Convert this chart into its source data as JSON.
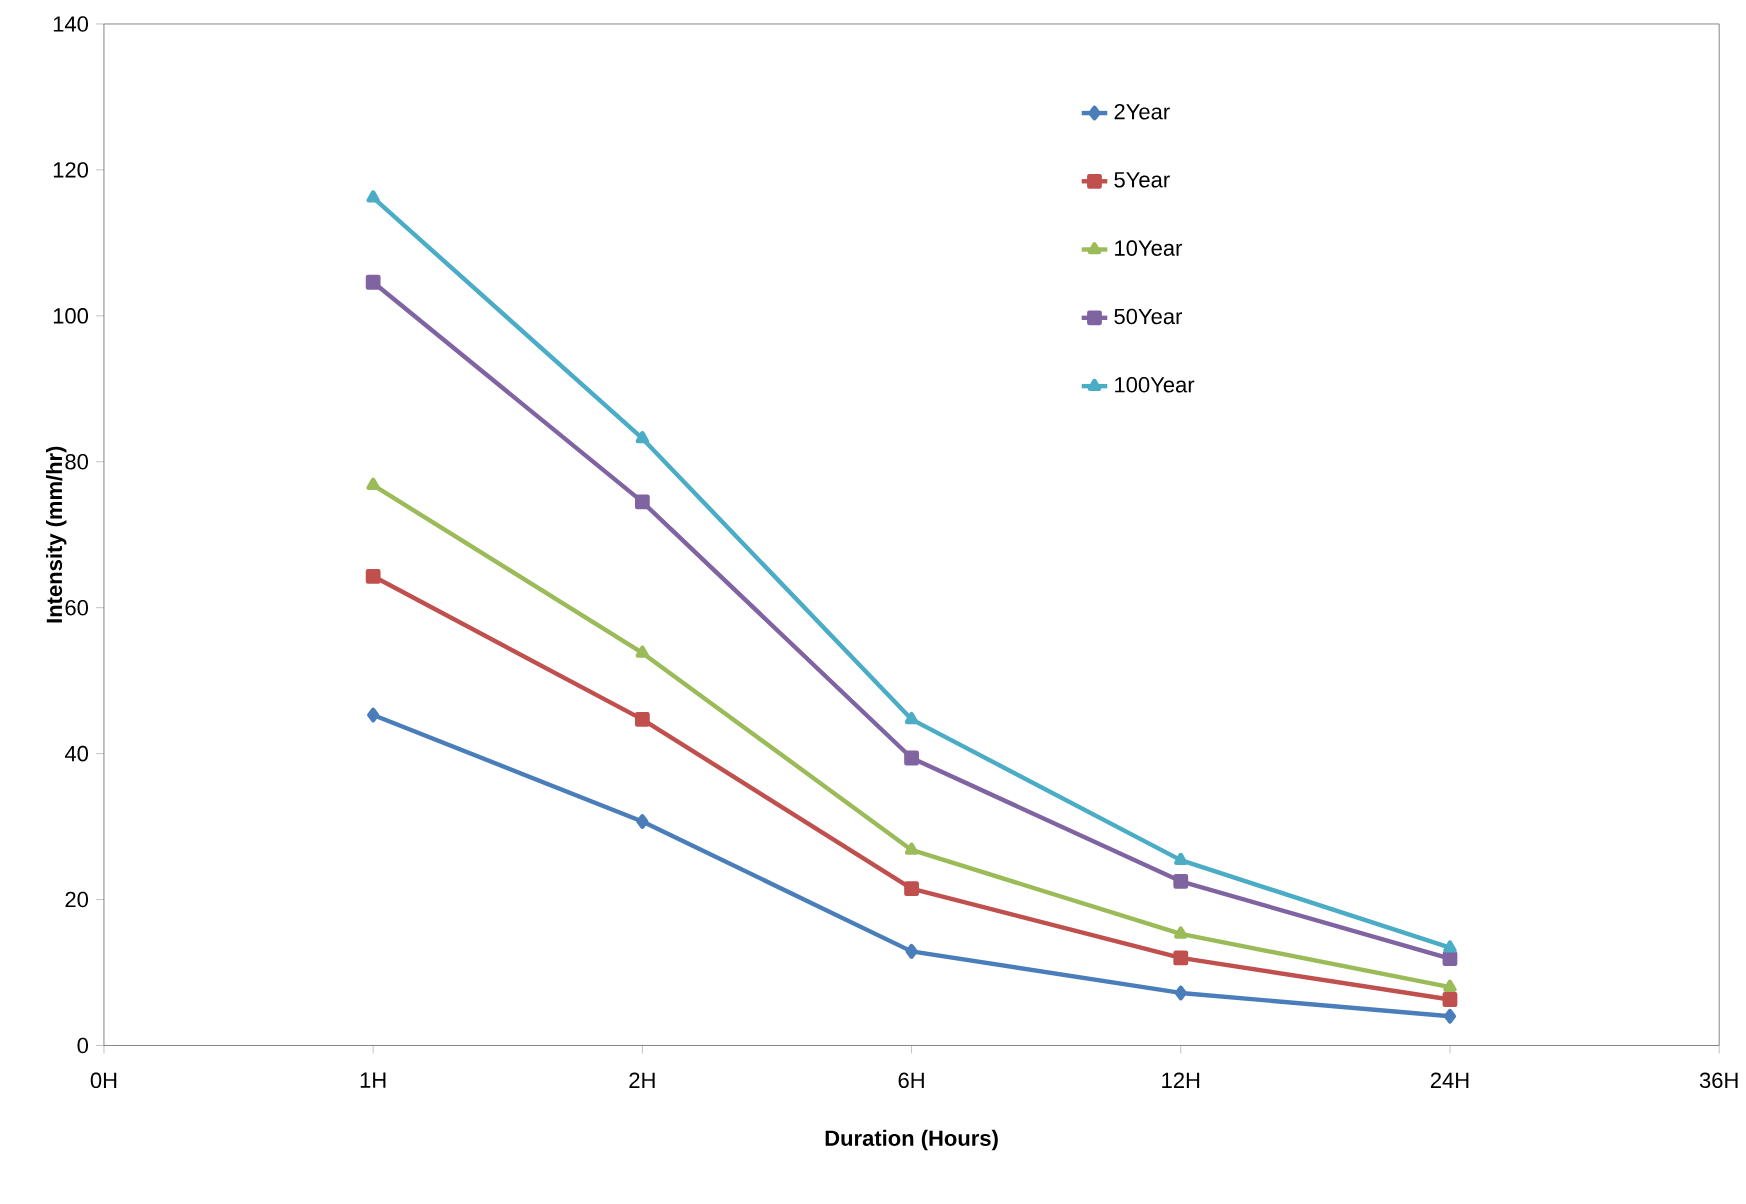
{
  "chart_data": {
    "type": "line",
    "xlabel": "Duration (Hours)",
    "ylabel": "Intensity (mm/hr)",
    "categories": [
      "0H",
      "1H",
      "2H",
      "6H",
      "12H",
      "24H",
      "36H"
    ],
    "series": [
      {
        "name": "2Year",
        "color": "#4a7eba",
        "marker": "diamond",
        "values": [
          null,
          45.3,
          30.7,
          12.9,
          7.2,
          4.0,
          null
        ]
      },
      {
        "name": "5Year",
        "color": "#c0504d",
        "marker": "square",
        "values": [
          null,
          64.3,
          44.7,
          21.5,
          12.0,
          6.3,
          null
        ]
      },
      {
        "name": "10Year",
        "color": "#9bbb59",
        "marker": "triangle",
        "values": [
          null,
          76.8,
          53.8,
          26.8,
          15.3,
          8.0,
          null
        ]
      },
      {
        "name": "50Year",
        "color": "#8064a2",
        "marker": "square",
        "values": [
          null,
          104.6,
          74.5,
          39.4,
          22.5,
          11.9,
          null
        ]
      },
      {
        "name": "100Year",
        "color": "#4bacc6",
        "marker": "triangle",
        "values": [
          null,
          116.2,
          83.2,
          44.7,
          25.4,
          13.4,
          null
        ]
      }
    ],
    "ylim": [
      0,
      140
    ],
    "yticks": [
      0,
      20,
      40,
      60,
      80,
      100,
      120,
      140
    ],
    "grid": false,
    "legend": "top right",
    "line_style": "solid"
  }
}
